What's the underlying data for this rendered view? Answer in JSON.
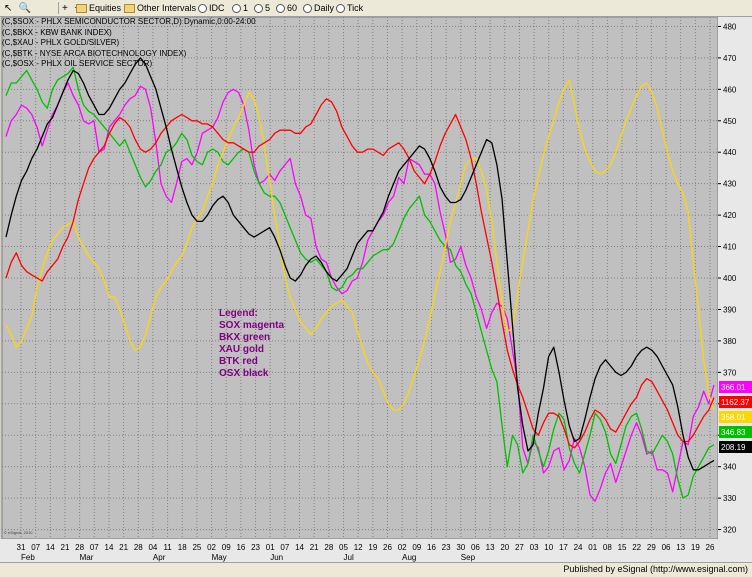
{
  "toolbar": {
    "items": [
      {
        "label": "Equities",
        "icon": "folder-icon",
        "dropdown": true
      },
      {
        "label": "Other Intervals",
        "icon": "folder-icon",
        "dropdown": true
      },
      {
        "label": "IDC",
        "icon": "radio-icon"
      },
      {
        "label": "1"
      },
      {
        "label": "5"
      },
      {
        "label": "60"
      },
      {
        "label": "Daily"
      },
      {
        "label": "Tick"
      }
    ]
  },
  "series_labels": [
    "(C,$SOX - PHLX SEMICONDUCTOR SECTOR,D) Dynamic,0:00-24:00",
    "(C,$BKX - KBW BANK INDEX)",
    "(C,$XAU - PHLX GOLD/SILVER)",
    "(C,$BTK - NYSE ARCA BIOTECHNOLOGY INDEX)",
    "(C,$OSX - PHLX OIL SERVICE SECTOR)"
  ],
  "legend_block": {
    "title": "Legend:",
    "lines": [
      "SOX magenta",
      "BKX green",
      "XAU gold",
      "BTK red",
      "OSX black"
    ]
  },
  "footer": {
    "text": "Published by eSignal (http://www.esignal.com)"
  },
  "copyright": "© eSignal, 2010",
  "chart_data": {
    "type": "line",
    "grid": true,
    "background": "#c0c0c0",
    "y_axis": {
      "position": "right",
      "ylim": [
        317,
        483
      ],
      "ticks": [
        320,
        330,
        340,
        350,
        360,
        370,
        380,
        390,
        400,
        410,
        420,
        430,
        440,
        450,
        460,
        470,
        480
      ]
    },
    "x_tick_labels": [
      "31",
      "07",
      "14",
      "21",
      "28",
      "07",
      "14",
      "21",
      "28",
      "04",
      "11",
      "18",
      "25",
      "02",
      "09",
      "16",
      "23",
      "01",
      "07",
      "14",
      "21",
      "28",
      "05",
      "12",
      "19",
      "26",
      "02",
      "09",
      "16",
      "23",
      "30",
      "06",
      "13",
      "20",
      "27",
      "03",
      "10",
      "17",
      "24"
    ],
    "x_tick_labels_extra": [
      "01",
      "08",
      "15",
      "22",
      "29",
      "06",
      "13",
      "19",
      "26"
    ],
    "month_labels": [
      "Feb",
      "Mar",
      "Apr",
      "May",
      "Jun",
      "Jul",
      "Aug",
      "Sep"
    ],
    "last_value_tags": [
      {
        "text": "366.01",
        "color": "#ff00ff"
      },
      {
        "text": "1162.37",
        "color": "#ff0000"
      },
      {
        "text": "358.01",
        "color": "#ffd700"
      },
      {
        "text": "346.83",
        "color": "#00c000"
      },
      {
        "text": "208.19",
        "color": "#000000"
      }
    ],
    "series": [
      {
        "name": "SOX",
        "color": "#ff00ff",
        "values": [
          445,
          450,
          452,
          455,
          454,
          452,
          448,
          442,
          447,
          452,
          455,
          459,
          462,
          458,
          455,
          450,
          449,
          450,
          440,
          441,
          448,
          450,
          452,
          455,
          457,
          458,
          461,
          460,
          454,
          443,
          430,
          426,
          424,
          430,
          437,
          438,
          436,
          440,
          446,
          447,
          448,
          451,
          456,
          459,
          460,
          459,
          455,
          447,
          436,
          430,
          431,
          433,
          431,
          434,
          436,
          438,
          430,
          426,
          420,
          419,
          410,
          406,
          405,
          400,
          397,
          395,
          396,
          399,
          400,
          405,
          412,
          415,
          418,
          420,
          424,
          426,
          432,
          430,
          438,
          437,
          436,
          433,
          433,
          430,
          421,
          414,
          405,
          406,
          410,
          404,
          400,
          394,
          390,
          384,
          389,
          392,
          391,
          387,
          377,
          367,
          346,
          341,
          348,
          346,
          338,
          340,
          345,
          346,
          339,
          342,
          349,
          346,
          340,
          331,
          329,
          333,
          338,
          341,
          335,
          340,
          345,
          350,
          354,
          350,
          344,
          345,
          339,
          339,
          338,
          332,
          340,
          348,
          347,
          356,
          359,
          364,
          360,
          366
        ]
      },
      {
        "name": "BKX",
        "color": "#00c000",
        "values": [
          458,
          462,
          462,
          464,
          466,
          463,
          460,
          456,
          454,
          460,
          463,
          464,
          465,
          467,
          460,
          455,
          453,
          452,
          450,
          448,
          446,
          444,
          442,
          444,
          440,
          436,
          432,
          429,
          431,
          434,
          436,
          440,
          441,
          443,
          446,
          444,
          439,
          437,
          436,
          440,
          441,
          440,
          437,
          436,
          438,
          440,
          441,
          440,
          434,
          430,
          427,
          426,
          426,
          424,
          420,
          416,
          412,
          408,
          406,
          405,
          406,
          404,
          402,
          397,
          396,
          397,
          400,
          401,
          403,
          403,
          405,
          407,
          408,
          409,
          409,
          411,
          415,
          419,
          422,
          424,
          426,
          420,
          418,
          415,
          412,
          410,
          409,
          404,
          402,
          398,
          395,
          389,
          383,
          377,
          371,
          367,
          353,
          340,
          350,
          347,
          338,
          341,
          350,
          345,
          340,
          345,
          352,
          357,
          355,
          346,
          341,
          338,
          344,
          350,
          357,
          355,
          351,
          344,
          341,
          347,
          353,
          356,
          357,
          352,
          345,
          344,
          347,
          350,
          348,
          344,
          336,
          330,
          331,
          337,
          340,
          343,
          346,
          347
        ]
      },
      {
        "name": "XAU",
        "color": "#ffd700",
        "values": [
          385,
          382,
          378,
          380,
          384,
          388,
          397,
          403,
          408,
          412,
          414,
          416,
          417,
          418,
          413,
          410,
          407,
          405,
          403,
          399,
          394,
          394,
          390,
          385,
          380,
          377,
          378,
          382,
          388,
          394,
          397,
          399,
          402,
          405,
          407,
          411,
          416,
          419,
          421,
          426,
          430,
          436,
          440,
          444,
          448,
          451,
          455,
          459,
          457,
          451,
          442,
          431,
          420,
          410,
          400,
          394,
          390,
          386,
          384,
          382,
          384,
          387,
          389,
          391,
          392,
          393,
          391,
          389,
          383,
          378,
          373,
          370,
          368,
          364,
          360,
          358,
          358,
          360,
          364,
          369,
          374,
          380,
          387,
          395,
          402,
          410,
          418,
          424,
          430,
          436,
          438,
          438,
          434,
          428,
          418,
          405,
          392,
          383,
          384,
          395,
          405,
          415,
          425,
          432,
          439,
          445,
          450,
          456,
          460,
          463,
          455,
          447,
          441,
          437,
          434,
          433,
          434,
          436,
          440,
          445,
          450,
          454,
          458,
          461,
          462,
          459,
          454,
          447,
          440,
          434,
          430,
          427,
          421,
          405,
          390,
          374,
          363,
          358
        ]
      },
      {
        "name": "BTK",
        "color": "#ff0000",
        "values": [
          400,
          405,
          408,
          404,
          402,
          401,
          400,
          399,
          402,
          404,
          406,
          410,
          413,
          418,
          425,
          430,
          435,
          438,
          440,
          442,
          446,
          449,
          451,
          450,
          448,
          444,
          441,
          440,
          441,
          443,
          446,
          448,
          450,
          451,
          452,
          451,
          450,
          450,
          449,
          449,
          448,
          446,
          444,
          443,
          443,
          442,
          441,
          440,
          440,
          442,
          443,
          444,
          446,
          447,
          447,
          447,
          446,
          446,
          448,
          449,
          452,
          455,
          457,
          456,
          453,
          448,
          445,
          442,
          440,
          440,
          441,
          441,
          440,
          439,
          441,
          442,
          443,
          441,
          438,
          434,
          432,
          430,
          433,
          437,
          442,
          446,
          449,
          452,
          448,
          444,
          438,
          430,
          421,
          413,
          405,
          396,
          386,
          377,
          371,
          366,
          362,
          357,
          352,
          350,
          354,
          357,
          357,
          356,
          352,
          347,
          346,
          348,
          351,
          355,
          358,
          357,
          355,
          352,
          351,
          354,
          357,
          360,
          362,
          366,
          368,
          367,
          364,
          361,
          358,
          354,
          350,
          348,
          348,
          350,
          353,
          356,
          358,
          362
        ]
      },
      {
        "name": "OSX",
        "color": "#000000",
        "values": [
          413,
          420,
          426,
          431,
          434,
          438,
          441,
          445,
          449,
          451,
          455,
          459,
          463,
          466,
          465,
          462,
          458,
          455,
          452,
          452,
          454,
          457,
          460,
          462,
          465,
          468,
          470,
          468,
          464,
          460,
          454,
          448,
          441,
          435,
          429,
          424,
          420,
          418,
          418,
          420,
          423,
          425,
          426,
          424,
          420,
          418,
          416,
          414,
          413,
          414,
          415,
          416,
          413,
          409,
          404,
          400,
          399,
          401,
          404,
          406,
          407,
          405,
          402,
          400,
          399,
          401,
          403,
          407,
          411,
          413,
          415,
          415,
          418,
          421,
          426,
          430,
          434,
          436,
          438,
          440,
          442,
          441,
          438,
          434,
          429,
          426,
          424,
          424,
          425,
          428,
          432,
          436,
          440,
          444,
          443,
          436,
          425,
          405,
          385,
          365,
          353,
          345,
          347,
          357,
          365,
          375,
          378,
          370,
          361,
          353,
          348,
          349,
          355,
          362,
          368,
          372,
          374,
          372,
          370,
          369,
          370,
          372,
          375,
          377,
          378,
          377,
          375,
          372,
          369,
          366,
          359,
          350,
          343,
          339,
          339,
          340,
          341,
          342
        ]
      }
    ]
  }
}
